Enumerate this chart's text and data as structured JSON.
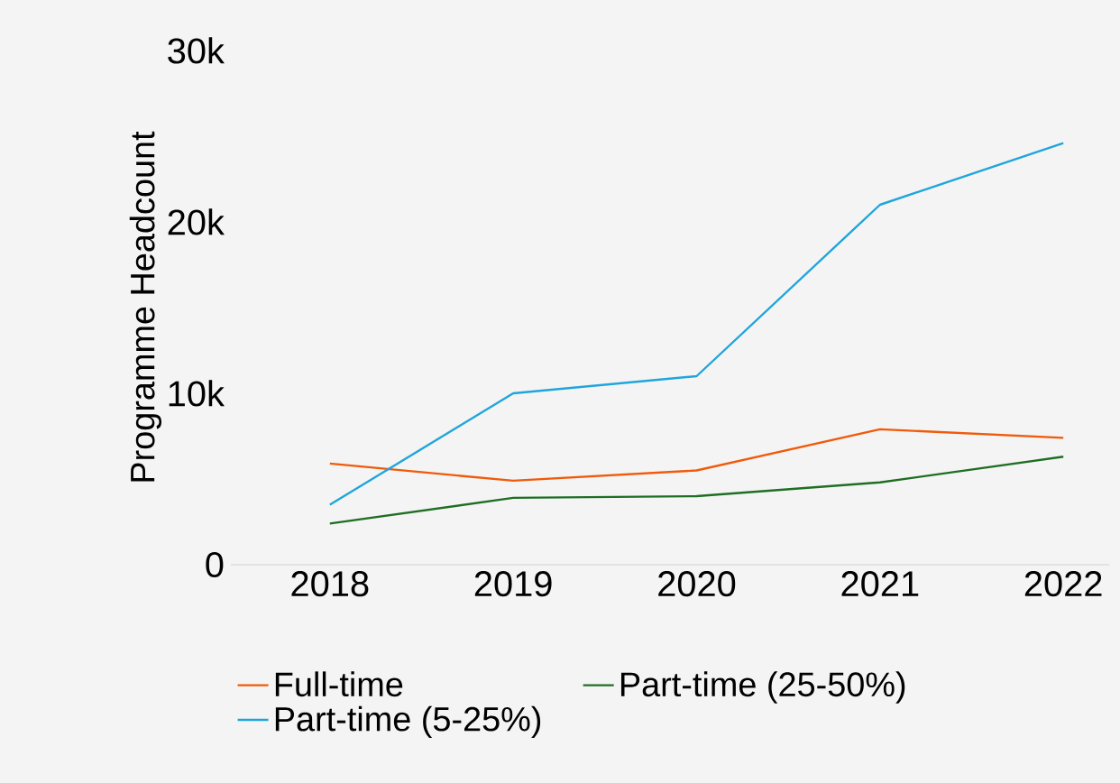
{
  "chart_data": {
    "type": "line",
    "ylabel": "Programme Headcount",
    "categories": [
      "2018",
      "2019",
      "2020",
      "2021",
      "2022"
    ],
    "series": [
      {
        "name": "Full-time",
        "color": "#f05a0a",
        "values": [
          5900,
          4900,
          5500,
          7900,
          7400
        ]
      },
      {
        "name": "Part-time (25-50%)",
        "color": "#1e6e23",
        "values": [
          2400,
          3900,
          4000,
          4800,
          6300
        ]
      },
      {
        "name": "Part-time (5-25%)",
        "color": "#1fa5dc",
        "values": [
          3500,
          10000,
          11000,
          21000,
          24600
        ]
      }
    ],
    "ylim": [
      0,
      30000
    ],
    "yticks": [
      0,
      {
        "value": 10000,
        "label": "10k"
      },
      {
        "value": 20000,
        "label": "20k"
      },
      {
        "value": 30000,
        "label": "30k"
      }
    ],
    "grid": false,
    "legend": "bottom",
    "marker": "none",
    "line_style": "solid"
  }
}
